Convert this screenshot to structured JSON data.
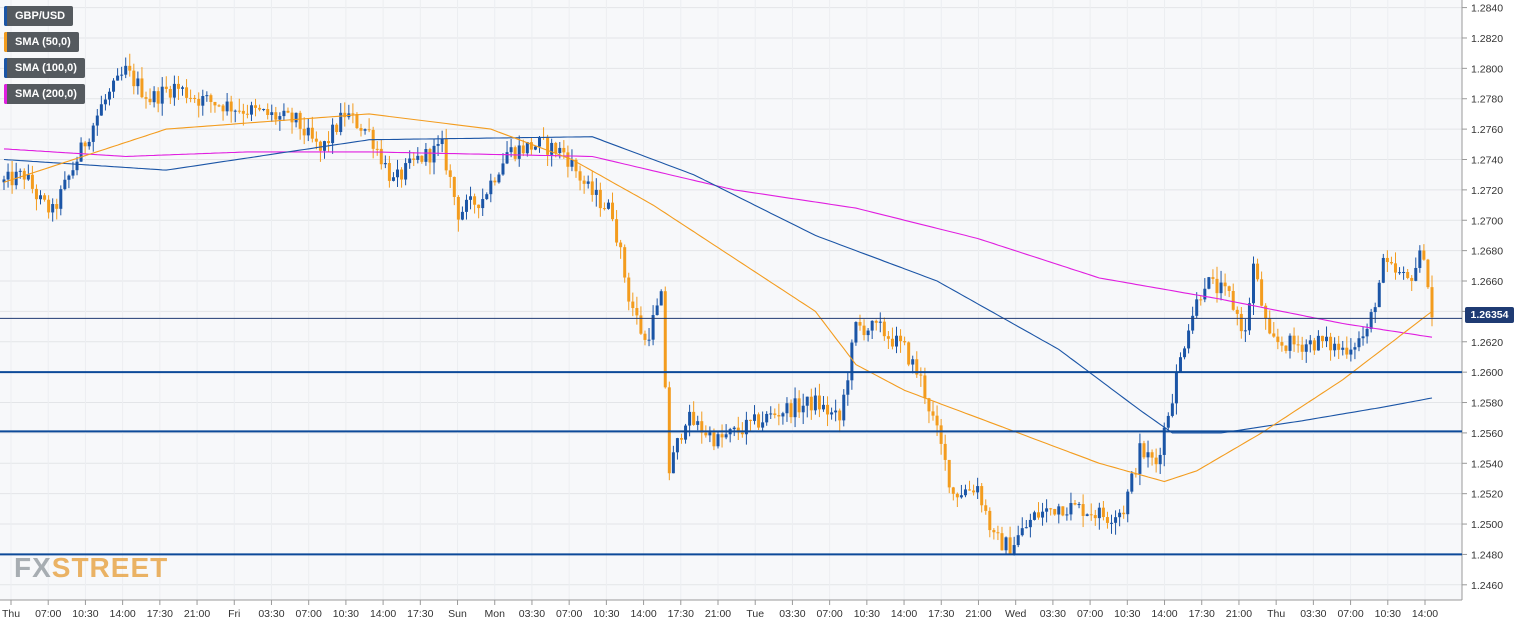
{
  "legend": {
    "symbol": "GBP/USD",
    "sma50": "SMA (50,0)",
    "sma100": "SMA (100,0)",
    "sma200": "SMA (200,0)"
  },
  "colors": {
    "up": "#1b55a6",
    "down": "#f39c1e",
    "sma50": "#f39c1e",
    "sma100": "#1b55a6",
    "sma200": "#e01fe0",
    "level": "#0d4a99",
    "current": "#1f3b73"
  },
  "logo": {
    "fx": "FX",
    "street": "STREET"
  },
  "current_price_label": "1.26354",
  "chart_data": {
    "type": "candlestick",
    "symbol": "GBP/USD",
    "ylim": [
      1.245,
      1.2845
    ],
    "yticks": [
      "1.2460",
      "1.2480",
      "1.2500",
      "1.2520",
      "1.2540",
      "1.2560",
      "1.2580",
      "1.2600",
      "1.2620",
      "1.2640",
      "1.2660",
      "1.2680",
      "1.2700",
      "1.2720",
      "1.2740",
      "1.2760",
      "1.2780",
      "1.2800",
      "1.2820",
      "1.2840"
    ],
    "xticks": [
      "Thu",
      "07:00",
      "10:30",
      "14:00",
      "17:30",
      "21:00",
      "Fri",
      "03:30",
      "07:00",
      "10:30",
      "14:00",
      "17:30",
      "Sun",
      "Mon",
      "03:30",
      "07:00",
      "10:30",
      "14:00",
      "17:30",
      "21:00",
      "Tue",
      "03:30",
      "07:00",
      "10:30",
      "14:00",
      "17:30",
      "21:00",
      "Wed",
      "03:30",
      "07:00",
      "10:30",
      "14:00",
      "17:30",
      "21:00",
      "Thu",
      "03:30",
      "07:00",
      "10:30",
      "14:00"
    ],
    "current_price": 1.26354,
    "horizontal_levels": [
      1.26,
      1.2561,
      1.248
    ],
    "close_anchors": [
      [
        0,
        1.2725
      ],
      [
        5,
        1.273
      ],
      [
        9,
        1.2712
      ],
      [
        12,
        1.2705
      ],
      [
        18,
        1.274
      ],
      [
        24,
        1.2775
      ],
      [
        30,
        1.2798
      ],
      [
        36,
        1.278
      ],
      [
        42,
        1.2788
      ],
      [
        48,
        1.278
      ],
      [
        56,
        1.2775
      ],
      [
        64,
        1.277
      ],
      [
        72,
        1.2765
      ],
      [
        78,
        1.2745
      ],
      [
        84,
        1.277
      ],
      [
        90,
        1.2758
      ],
      [
        96,
        1.2725
      ],
      [
        102,
        1.274
      ],
      [
        108,
        1.2748
      ],
      [
        112,
        1.2705
      ],
      [
        118,
        1.2715
      ],
      [
        124,
        1.2745
      ],
      [
        132,
        1.275
      ],
      [
        138,
        1.2745
      ],
      [
        144,
        1.272
      ],
      [
        150,
        1.2705
      ],
      [
        154,
        1.265
      ],
      [
        158,
        1.262
      ],
      [
        162,
        1.2648
      ],
      [
        164,
        1.2535
      ],
      [
        168,
        1.257
      ],
      [
        176,
        1.2555
      ],
      [
        184,
        1.2565
      ],
      [
        192,
        1.2575
      ],
      [
        200,
        1.258
      ],
      [
        206,
        1.2568
      ],
      [
        210,
        1.263
      ],
      [
        216,
        1.2628
      ],
      [
        222,
        1.2615
      ],
      [
        226,
        1.2595
      ],
      [
        230,
        1.256
      ],
      [
        234,
        1.252
      ],
      [
        240,
        1.2525
      ],
      [
        244,
        1.249
      ],
      [
        248,
        1.2485
      ],
      [
        254,
        1.2505
      ],
      [
        260,
        1.2512
      ],
      [
        266,
        1.251
      ],
      [
        272,
        1.2505
      ],
      [
        276,
        1.251
      ],
      [
        280,
        1.2548
      ],
      [
        284,
        1.254
      ],
      [
        288,
        1.2585
      ],
      [
        292,
        1.2632
      ],
      [
        296,
        1.266
      ],
      [
        302,
        1.265
      ],
      [
        306,
        1.2625
      ],
      [
        308,
        1.267
      ],
      [
        312,
        1.262
      ],
      [
        318,
        1.2618
      ],
      [
        324,
        1.262
      ],
      [
        330,
        1.2615
      ],
      [
        336,
        1.2625
      ],
      [
        340,
        1.267
      ],
      [
        346,
        1.266
      ],
      [
        350,
        1.268
      ],
      [
        352,
        1.2635
      ]
    ],
    "sma50_anchors": [
      [
        0,
        1.2725
      ],
      [
        40,
        1.276
      ],
      [
        90,
        1.277
      ],
      [
        120,
        1.276
      ],
      [
        140,
        1.274
      ],
      [
        160,
        1.271
      ],
      [
        200,
        1.264
      ],
      [
        210,
        1.2605
      ],
      [
        222,
        1.2588
      ],
      [
        250,
        1.256
      ],
      [
        270,
        1.254
      ],
      [
        286,
        1.2528
      ],
      [
        294,
        1.2535
      ],
      [
        310,
        1.256
      ],
      [
        330,
        1.2595
      ],
      [
        352,
        1.264
      ]
    ],
    "sma100_anchors": [
      [
        0,
        1.274
      ],
      [
        40,
        1.2733
      ],
      [
        70,
        1.2745
      ],
      [
        90,
        1.2753
      ],
      [
        145,
        1.2755
      ],
      [
        170,
        1.273
      ],
      [
        200,
        1.269
      ],
      [
        230,
        1.266
      ],
      [
        260,
        1.2615
      ],
      [
        280,
        1.2575
      ],
      [
        288,
        1.256
      ],
      [
        300,
        1.256
      ],
      [
        320,
        1.2568
      ],
      [
        340,
        1.2577
      ],
      [
        352,
        1.2583
      ]
    ],
    "sma200_anchors": [
      [
        0,
        1.2747
      ],
      [
        30,
        1.2742
      ],
      [
        60,
        1.2745
      ],
      [
        90,
        1.2745
      ],
      [
        145,
        1.2742
      ],
      [
        180,
        1.272
      ],
      [
        210,
        1.2708
      ],
      [
        240,
        1.2688
      ],
      [
        270,
        1.2662
      ],
      [
        300,
        1.2648
      ],
      [
        330,
        1.2632
      ],
      [
        352,
        1.2623
      ]
    ],
    "n_candles": 353
  }
}
